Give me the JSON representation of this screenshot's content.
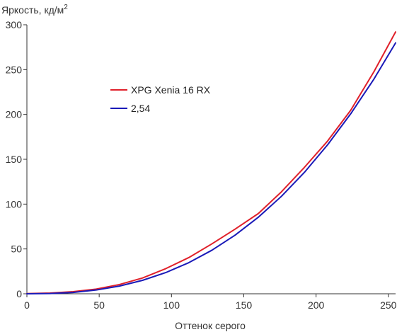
{
  "chart_data": {
    "type": "line",
    "ylabel": "Яркость, кд/м",
    "ylabel_superscript": "2",
    "xlabel": "Оттенок серого",
    "xlim": [
      0,
      255
    ],
    "ylim": [
      0,
      300
    ],
    "xticks": [
      0,
      50,
      100,
      150,
      200,
      250
    ],
    "yticks": [
      0,
      50,
      100,
      150,
      200,
      250,
      300
    ],
    "grid": false,
    "legend_position": "upper-left-inside",
    "series": [
      {
        "name": "XPG Xenia 16 RX",
        "color": "#e0202a",
        "x": [
          0,
          16,
          32,
          48,
          64,
          80,
          96,
          112,
          128,
          144,
          160,
          176,
          192,
          208,
          224,
          240,
          255
        ],
        "y": [
          0.2,
          0.8,
          2.4,
          5.2,
          10.3,
          17.6,
          28.0,
          40.4,
          55.7,
          72.1,
          89.4,
          113.6,
          141.1,
          170.4,
          204.8,
          247.6,
          292.0
        ]
      },
      {
        "name": "2,54",
        "color": "#1a1ab8",
        "x": [
          0,
          16,
          32,
          48,
          64,
          80,
          96,
          112,
          128,
          144,
          160,
          176,
          192,
          208,
          224,
          240,
          255
        ],
        "y": [
          0.0,
          0.26,
          1.5,
          4.2,
          8.6,
          15.0,
          23.6,
          34.7,
          48.6,
          65.4,
          85.3,
          108.6,
          135.5,
          166.2,
          200.8,
          239.4,
          279.8
        ]
      }
    ]
  }
}
